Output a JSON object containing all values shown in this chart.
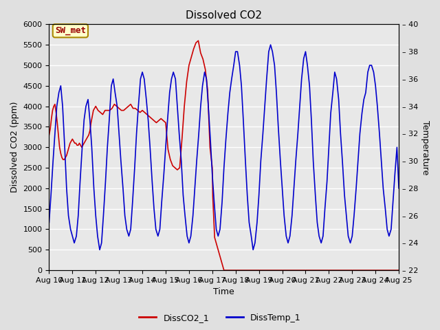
{
  "title": "Dissolved CO2",
  "xlabel": "Time",
  "ylabel_left": "Dissolved CO2 (ppm)",
  "ylabel_right": "Temperature",
  "ylim_left": [
    0,
    6000
  ],
  "ylim_right": [
    22,
    40
  ],
  "x_tick_labels": [
    "Aug 10",
    "Aug 11",
    "Aug 12",
    "Aug 13",
    "Aug 14",
    "Aug 15",
    "Aug 16",
    "Aug 17",
    "Aug 18",
    "Aug 19",
    "Aug 20",
    "Aug 21",
    "Aug 22",
    "Aug 23",
    "Aug 24",
    "Aug 25"
  ],
  "background_color": "#e0e0e0",
  "plot_bg_color": "#e8e8e8",
  "grid_color": "#ffffff",
  "sw_met_label": "SW_met",
  "sw_met_bg": "#ffffcc",
  "sw_met_border": "#aa8800",
  "sw_met_text_color": "#990000",
  "legend_labels": [
    "DissCO2_1",
    "DissTemp_1"
  ],
  "line1_color": "#cc0000",
  "line2_color": "#0000cc",
  "title_fontsize": 11,
  "axis_label_fontsize": 9,
  "tick_fontsize": 8,
  "co2_x": [
    0.0,
    0.05,
    0.1,
    0.15,
    0.2,
    0.25,
    0.3,
    0.35,
    0.4,
    0.45,
    0.5,
    0.55,
    0.6,
    0.65,
    0.7,
    0.75,
    0.8,
    0.85,
    0.9,
    0.95,
    1.0,
    1.05,
    1.1,
    1.15,
    1.2,
    1.25,
    1.3,
    1.35,
    1.4,
    1.45,
    1.5,
    1.55,
    1.6,
    1.65,
    1.7,
    1.75,
    1.8,
    1.85,
    1.9,
    1.95,
    2.0,
    2.1,
    2.2,
    2.3,
    2.4,
    2.5,
    2.6,
    2.7,
    2.8,
    2.9,
    3.0,
    3.1,
    3.2,
    3.3,
    3.4,
    3.5,
    3.6,
    3.7,
    3.8,
    3.9,
    4.0,
    4.1,
    4.2,
    4.3,
    4.4,
    4.5,
    4.6,
    4.7,
    4.8,
    4.9,
    5.0,
    5.1,
    5.2,
    5.3,
    5.4,
    5.5,
    5.6,
    5.7,
    5.8,
    5.9,
    6.0,
    6.1,
    6.2,
    6.3,
    6.4,
    6.5,
    6.6,
    6.7,
    6.8,
    6.9,
    7.0,
    7.02,
    7.1,
    7.5,
    8.0,
    9.0,
    10.0,
    11.0,
    12.0,
    13.0,
    14.0,
    15.0
  ],
  "co2_y": [
    3300,
    3450,
    3700,
    3900,
    4000,
    4050,
    3850,
    3600,
    3300,
    3000,
    2850,
    2750,
    2700,
    2700,
    2750,
    2800,
    2900,
    3000,
    3100,
    3150,
    3200,
    3150,
    3100,
    3100,
    3050,
    3050,
    3100,
    3050,
    3000,
    3050,
    3100,
    3150,
    3200,
    3250,
    3300,
    3400,
    3600,
    3750,
    3900,
    3950,
    4000,
    3900,
    3850,
    3800,
    3900,
    3900,
    3900,
    3950,
    4050,
    4000,
    3950,
    3900,
    3900,
    3950,
    4000,
    4050,
    3950,
    3950,
    3900,
    3850,
    3900,
    3850,
    3800,
    3750,
    3700,
    3650,
    3600,
    3650,
    3700,
    3650,
    3600,
    2950,
    2700,
    2550,
    2500,
    2450,
    2500,
    3200,
    4000,
    4600,
    5000,
    5200,
    5400,
    5550,
    5600,
    5300,
    5150,
    4900,
    4400,
    3000,
    2500,
    1800,
    800,
    0,
    0,
    0,
    0,
    0,
    0,
    0,
    0,
    0
  ],
  "temp_x": [
    0.0,
    0.08,
    0.17,
    0.25,
    0.33,
    0.42,
    0.5,
    0.58,
    0.67,
    0.75,
    0.83,
    0.92,
    1.0,
    1.08,
    1.17,
    1.25,
    1.33,
    1.42,
    1.5,
    1.58,
    1.67,
    1.75,
    1.83,
    1.92,
    2.0,
    2.08,
    2.17,
    2.25,
    2.33,
    2.42,
    2.5,
    2.58,
    2.67,
    2.75,
    2.83,
    2.92,
    3.0,
    3.08,
    3.17,
    3.25,
    3.33,
    3.42,
    3.5,
    3.58,
    3.67,
    3.75,
    3.83,
    3.92,
    4.0,
    4.08,
    4.17,
    4.25,
    4.33,
    4.42,
    4.5,
    4.58,
    4.67,
    4.75,
    4.83,
    4.92,
    5.0,
    5.08,
    5.17,
    5.25,
    5.33,
    5.42,
    5.5,
    5.58,
    5.67,
    5.75,
    5.83,
    5.92,
    6.0,
    6.08,
    6.17,
    6.25,
    6.33,
    6.42,
    6.5,
    6.58,
    6.67,
    6.75,
    6.83,
    6.92,
    7.0,
    7.08,
    7.17,
    7.25,
    7.33,
    7.42,
    7.5,
    7.58,
    7.67,
    7.75,
    7.83,
    7.92,
    8.0,
    8.08,
    8.17,
    8.25,
    8.33,
    8.42,
    8.5,
    8.58,
    8.67,
    8.75,
    8.83,
    8.92,
    9.0,
    9.08,
    9.17,
    9.25,
    9.33,
    9.42,
    9.5,
    9.58,
    9.67,
    9.75,
    9.83,
    9.92,
    10.0,
    10.08,
    10.17,
    10.25,
    10.33,
    10.42,
    10.5,
    10.58,
    10.67,
    10.75,
    10.83,
    10.92,
    11.0,
    11.08,
    11.17,
    11.25,
    11.33,
    11.42,
    11.5,
    11.58,
    11.67,
    11.75,
    11.83,
    11.92,
    12.0,
    12.08,
    12.17,
    12.25,
    12.33,
    12.42,
    12.5,
    12.58,
    12.67,
    12.75,
    12.83,
    12.92,
    13.0,
    13.08,
    13.17,
    13.25,
    13.33,
    13.42,
    13.5,
    13.58,
    13.67,
    13.75,
    13.83,
    13.92,
    14.0,
    14.08,
    14.17,
    14.25,
    14.33,
    14.42,
    14.5,
    14.58,
    14.67,
    14.75,
    14.83,
    14.92,
    15.0
  ],
  "temp_y": [
    25.5,
    27.5,
    30,
    32,
    34,
    35,
    35.5,
    34,
    31,
    28,
    26,
    25,
    24.5,
    24,
    24.5,
    26,
    28.5,
    31,
    33,
    34,
    34.5,
    33,
    31,
    28,
    26,
    24.5,
    23.5,
    24,
    26,
    28.5,
    31,
    33,
    35.5,
    36,
    35,
    34,
    32,
    30,
    28,
    26,
    25,
    24.5,
    25,
    27,
    29.5,
    32,
    34,
    36,
    36.5,
    36,
    34.5,
    33,
    31,
    28.5,
    26.5,
    25,
    24.5,
    25,
    27,
    29,
    31,
    33,
    35,
    36,
    36.5,
    36,
    34,
    32,
    30,
    27.5,
    26,
    24.5,
    24,
    24.5,
    26,
    28,
    30,
    32,
    34,
    35.5,
    36.5,
    36,
    34,
    31.5,
    29,
    27,
    25,
    24.5,
    25,
    27,
    29.5,
    31.5,
    33.5,
    35,
    36,
    37,
    38,
    38,
    37,
    35.5,
    33,
    30,
    27.5,
    25.5,
    24.5,
    23.5,
    24,
    25.5,
    27.5,
    30,
    32,
    34,
    36,
    38,
    38.5,
    38,
    37,
    35,
    32.5,
    30,
    28,
    26,
    24.5,
    24,
    24.5,
    26,
    28,
    30,
    32,
    34,
    36,
    37.5,
    38,
    37,
    35.5,
    33,
    30,
    27.5,
    25.5,
    24.5,
    24,
    24.5,
    26.5,
    28.5,
    31,
    33.5,
    35,
    36.5,
    36,
    34.5,
    32,
    30,
    27.5,
    26,
    24.5,
    24,
    24.5,
    26,
    28,
    30,
    32,
    33.5,
    34.5,
    35,
    36.5,
    37,
    37,
    36.5,
    35.5,
    34,
    32,
    30,
    28,
    26.5,
    25,
    24.5,
    25,
    27,
    29,
    31,
    28
  ]
}
